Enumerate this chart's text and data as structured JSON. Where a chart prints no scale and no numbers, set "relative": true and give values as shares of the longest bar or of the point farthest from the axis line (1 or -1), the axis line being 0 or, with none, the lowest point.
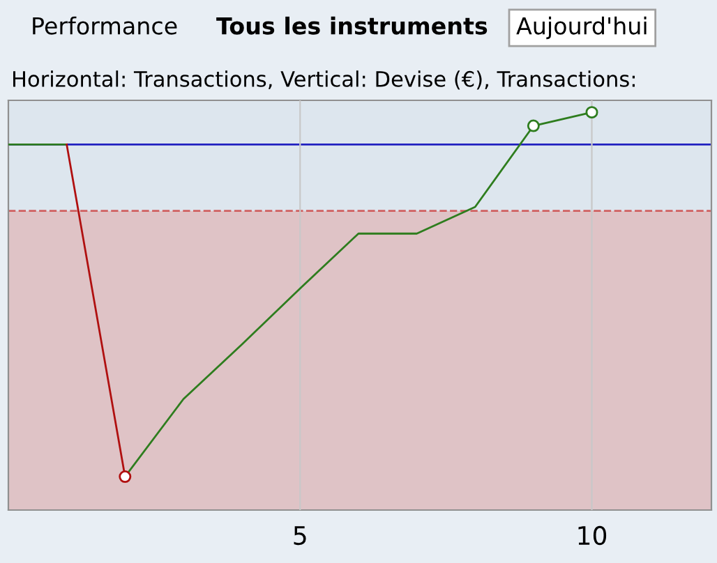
{
  "chart_data": {
    "type": "line",
    "title": "Horizontal: Transactions, Vertical: Devise (€), Transactions:",
    "annotations": [
      "Performance",
      "Tous les instruments",
      "Aujourd'hui"
    ],
    "relative": true,
    "xlim": [
      0,
      12.05
    ],
    "xticks": [
      5,
      10
    ],
    "series": [
      {
        "color": "#2e7d1e",
        "x": [
          0,
          1
        ],
        "values": [
          0.919,
          0.919
        ]
      },
      {
        "color": "#b01010",
        "x": [
          1,
          2
        ],
        "values": [
          0.919,
          0.084
        ]
      },
      {
        "color": "#2e7d1e",
        "x": [
          2,
          3,
          4,
          5,
          6,
          7,
          8,
          9,
          10
        ],
        "values": [
          0.084,
          0.279,
          0.416,
          0.557,
          0.695,
          0.695,
          0.762,
          0.966,
          1
        ]
      },
      {
        "type": "scatter",
        "marker": "circle",
        "color": "#b01010",
        "x": [
          2
        ],
        "values": [
          0.084
        ]
      },
      {
        "type": "scatter",
        "marker": "circle",
        "color": "#2e7d1e",
        "x": [
          9,
          10
        ],
        "values": [
          0.966,
          1
        ]
      }
    ],
    "ref_lines": [
      {
        "axis": "y",
        "value": 0.919,
        "color": "#2020c0",
        "line_style": "solid"
      },
      {
        "axis": "y",
        "value": 0.752,
        "color": "#d06060",
        "line_style": "dashed"
      }
    ],
    "bands": [
      {
        "axis": "y",
        "from": 0,
        "to": 0.752,
        "color": "#dfc3c6"
      }
    ],
    "grid": "x"
  }
}
